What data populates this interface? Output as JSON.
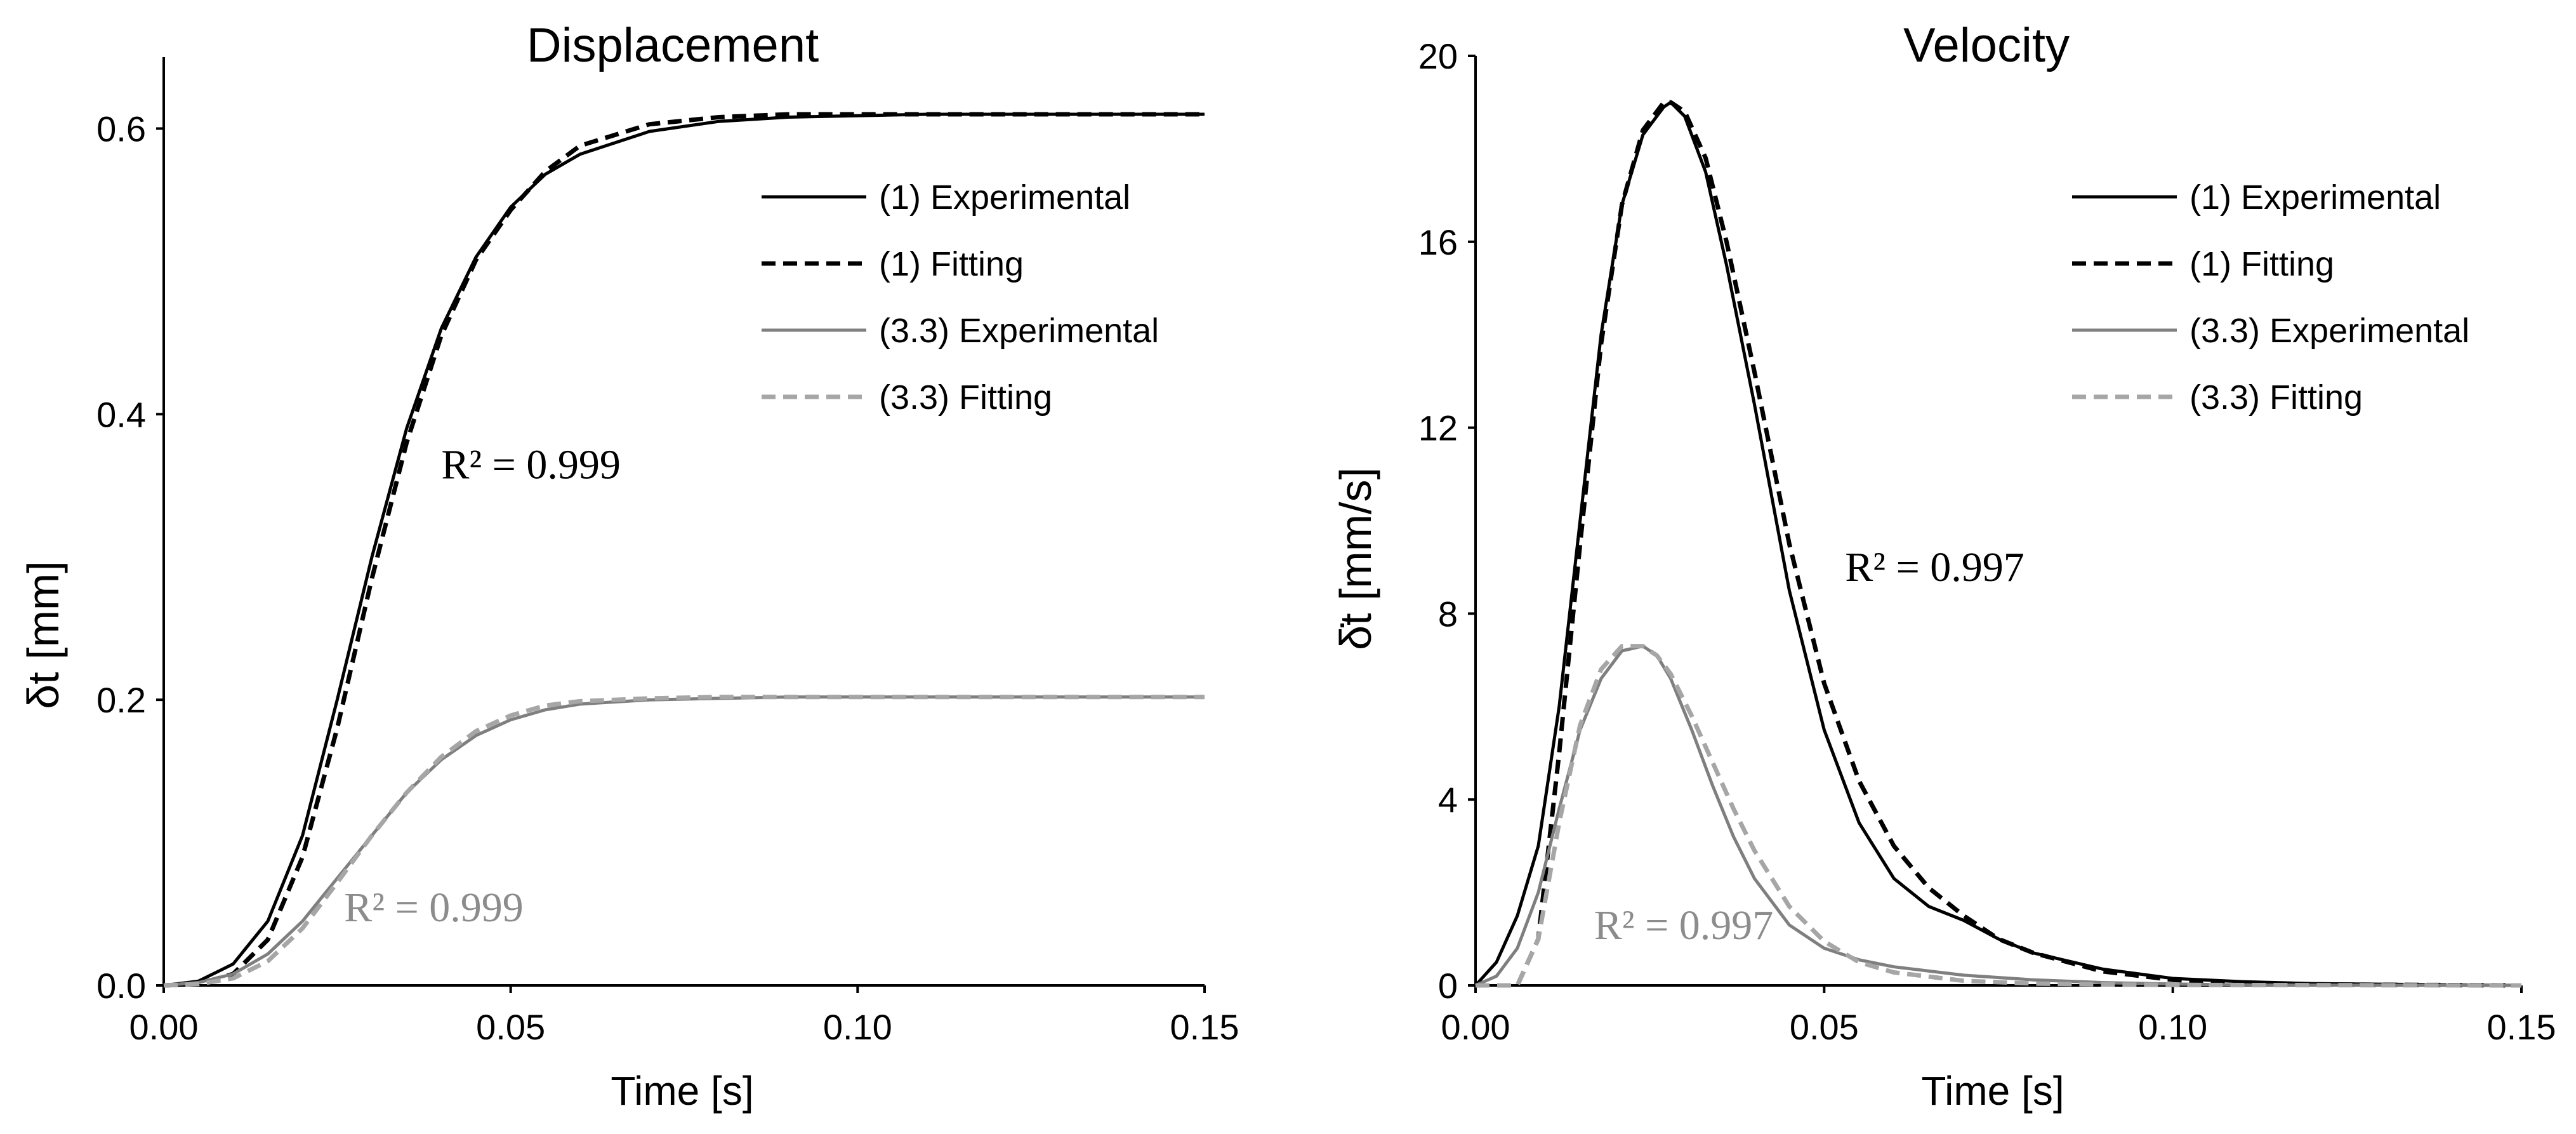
{
  "colors": {
    "black": "#000000",
    "gray_solid": "#7f7f7f",
    "gray_dashed": "#a6a6a6",
    "r2_gray": "#8c8c8c"
  },
  "chart_data": [
    {
      "type": "line",
      "title": "Displacement",
      "xlabel": "Time [s]",
      "ylabel": "δt [mm]",
      "xlim": [
        0,
        0.15
      ],
      "ylim": [
        0,
        0.65
      ],
      "xticks": [
        "0.00",
        "0.05",
        "0.10",
        "0.15"
      ],
      "xtick_values": [
        0,
        0.05,
        0.1,
        0.15
      ],
      "yticks": [
        "0.0",
        "0.2",
        "0.4",
        "0.6"
      ],
      "ytick_values": [
        0,
        0.2,
        0.4,
        0.6
      ],
      "legend": [
        "(1) Experimental",
        "(1) Fitting",
        "(3.3) Experimental",
        "(3.3) Fitting"
      ],
      "annotations": [
        {
          "text": "R² = 0.999",
          "x": 0.04,
          "y": 0.355,
          "color": "black"
        },
        {
          "text": "R² = 0.999",
          "x": 0.026,
          "y": 0.045,
          "color": "gray"
        }
      ],
      "series": [
        {
          "name": "(1) Experimental",
          "style": "solid",
          "color": "black",
          "x": [
            0,
            0.005,
            0.01,
            0.015,
            0.02,
            0.025,
            0.03,
            0.035,
            0.04,
            0.045,
            0.05,
            0.055,
            0.06,
            0.07,
            0.08,
            0.09,
            0.1,
            0.11,
            0.12,
            0.13,
            0.15
          ],
          "y": [
            0,
            0.003,
            0.015,
            0.045,
            0.105,
            0.2,
            0.3,
            0.39,
            0.46,
            0.51,
            0.545,
            0.568,
            0.582,
            0.598,
            0.605,
            0.608,
            0.609,
            0.61,
            0.61,
            0.61,
            0.61
          ]
        },
        {
          "name": "(1) Fitting",
          "style": "dashed",
          "color": "black",
          "x": [
            0,
            0.005,
            0.01,
            0.015,
            0.02,
            0.025,
            0.03,
            0.035,
            0.04,
            0.045,
            0.05,
            0.055,
            0.06,
            0.07,
            0.08,
            0.09,
            0.1,
            0.11,
            0.12,
            0.13,
            0.15
          ],
          "y": [
            0,
            0.001,
            0.008,
            0.032,
            0.09,
            0.18,
            0.285,
            0.38,
            0.455,
            0.508,
            0.543,
            0.57,
            0.588,
            0.603,
            0.608,
            0.61,
            0.61,
            0.61,
            0.61,
            0.61,
            0.61
          ]
        },
        {
          "name": "(3.3) Experimental",
          "style": "solid",
          "color": "gray",
          "x": [
            0,
            0.005,
            0.01,
            0.015,
            0.02,
            0.025,
            0.03,
            0.035,
            0.04,
            0.045,
            0.05,
            0.055,
            0.06,
            0.07,
            0.08,
            0.09,
            0.1,
            0.11,
            0.15
          ],
          "y": [
            0,
            0.002,
            0.008,
            0.022,
            0.045,
            0.075,
            0.105,
            0.135,
            0.158,
            0.175,
            0.186,
            0.193,
            0.197,
            0.2,
            0.201,
            0.202,
            0.202,
            0.202,
            0.202
          ]
        },
        {
          "name": "(3.3) Fitting",
          "style": "dashed",
          "color": "lightgray",
          "x": [
            0,
            0.005,
            0.01,
            0.015,
            0.02,
            0.025,
            0.03,
            0.035,
            0.04,
            0.045,
            0.05,
            0.055,
            0.06,
            0.07,
            0.08,
            0.09,
            0.1,
            0.11,
            0.15
          ],
          "y": [
            0,
            0.001,
            0.005,
            0.017,
            0.04,
            0.072,
            0.105,
            0.135,
            0.16,
            0.178,
            0.189,
            0.196,
            0.199,
            0.201,
            0.202,
            0.202,
            0.202,
            0.202,
            0.202
          ]
        }
      ]
    },
    {
      "type": "line",
      "title": "Velocity",
      "xlabel": "Time [s]",
      "ylabel": "δ̇t [mm/s]",
      "xlim": [
        0,
        0.15
      ],
      "ylim": [
        0,
        20
      ],
      "xticks": [
        "0.00",
        "0.05",
        "0.10",
        "0.15"
      ],
      "xtick_values": [
        0,
        0.05,
        0.1,
        0.15
      ],
      "yticks": [
        "0",
        "4",
        "8",
        "12",
        "16",
        "20"
      ],
      "ytick_values": [
        0,
        4,
        8,
        12,
        16,
        20
      ],
      "legend": [
        "(1) Experimental",
        "(1) Fitting",
        "(3.3) Experimental",
        "(3.3) Fitting"
      ],
      "annotations": [
        {
          "text": "R² = 0.997",
          "x": 0.053,
          "y": 8.7,
          "color": "black"
        },
        {
          "text": "R² = 0.997",
          "x": 0.017,
          "y": 1.0,
          "color": "gray"
        }
      ],
      "series": [
        {
          "name": "(1) Experimental",
          "style": "solid",
          "color": "black",
          "x": [
            0,
            0.003,
            0.006,
            0.009,
            0.012,
            0.015,
            0.018,
            0.021,
            0.024,
            0.027,
            0.028,
            0.03,
            0.033,
            0.036,
            0.04,
            0.045,
            0.05,
            0.055,
            0.06,
            0.065,
            0.07,
            0.075,
            0.08,
            0.09,
            0.1,
            0.11,
            0.12,
            0.15
          ],
          "y": [
            0,
            0.5,
            1.5,
            3.0,
            6.0,
            10.0,
            14.0,
            16.8,
            18.3,
            18.9,
            19.0,
            18.7,
            17.5,
            15.5,
            12.5,
            8.5,
            5.5,
            3.5,
            2.3,
            1.7,
            1.4,
            1.0,
            0.7,
            0.35,
            0.15,
            0.08,
            0.04,
            0.0
          ]
        },
        {
          "name": "(1) Fitting",
          "style": "dashed",
          "color": "black",
          "x": [
            0,
            0.006,
            0.009,
            0.012,
            0.015,
            0.018,
            0.021,
            0.024,
            0.027,
            0.028,
            0.03,
            0.033,
            0.036,
            0.04,
            0.045,
            0.05,
            0.055,
            0.06,
            0.065,
            0.07,
            0.075,
            0.08,
            0.09,
            0.1,
            0.11,
            0.12,
            0.15
          ],
          "y": [
            0,
            0.0,
            1.0,
            5.0,
            9.5,
            13.8,
            16.8,
            18.4,
            19.0,
            19.0,
            18.8,
            17.8,
            16.0,
            13.2,
            9.5,
            6.5,
            4.4,
            3.0,
            2.1,
            1.5,
            1.0,
            0.7,
            0.3,
            0.12,
            0.05,
            0.02,
            0.0
          ]
        },
        {
          "name": "(3.3) Experimental",
          "style": "solid",
          "color": "gray",
          "x": [
            0,
            0.003,
            0.006,
            0.009,
            0.012,
            0.015,
            0.018,
            0.021,
            0.024,
            0.026,
            0.028,
            0.031,
            0.034,
            0.037,
            0.04,
            0.045,
            0.05,
            0.055,
            0.06,
            0.07,
            0.08,
            0.09,
            0.1,
            0.11,
            0.15
          ],
          "y": [
            0,
            0.2,
            0.8,
            2.0,
            3.8,
            5.5,
            6.6,
            7.2,
            7.3,
            7.1,
            6.6,
            5.5,
            4.3,
            3.2,
            2.3,
            1.3,
            0.8,
            0.55,
            0.4,
            0.22,
            0.12,
            0.06,
            0.03,
            0.01,
            0.0
          ]
        },
        {
          "name": "(3.3) Fitting",
          "style": "dashed",
          "color": "lightgray",
          "x": [
            0,
            0.006,
            0.009,
            0.012,
            0.015,
            0.018,
            0.021,
            0.024,
            0.026,
            0.028,
            0.031,
            0.034,
            0.037,
            0.04,
            0.045,
            0.05,
            0.055,
            0.06,
            0.07,
            0.08,
            0.09,
            0.1,
            0.15
          ],
          "y": [
            0,
            0.0,
            1.0,
            3.5,
            5.6,
            6.8,
            7.3,
            7.3,
            7.1,
            6.7,
            5.8,
            4.8,
            3.8,
            2.9,
            1.7,
            0.95,
            0.5,
            0.28,
            0.1,
            0.04,
            0.02,
            0.01,
            0.0
          ]
        }
      ]
    }
  ]
}
